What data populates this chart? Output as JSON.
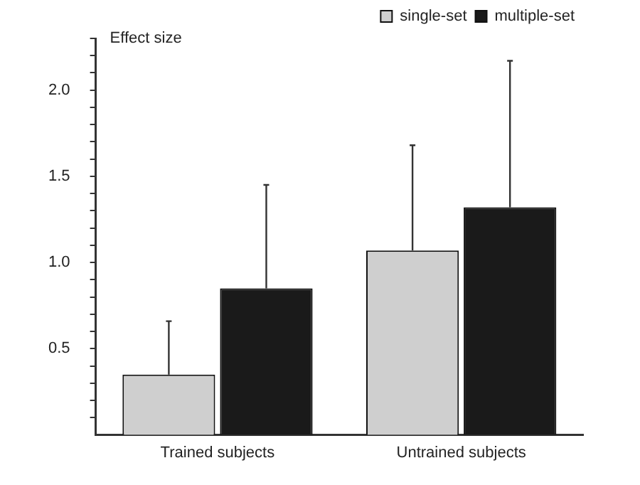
{
  "chart_data": {
    "type": "bar",
    "ylabel": "Effect size",
    "categories": [
      "Trained subjects",
      "Untrained subjects"
    ],
    "series": [
      {
        "name": "single-set",
        "color": "#cfcfcf",
        "values": [
          0.35,
          1.07
        ],
        "errors": [
          [
            0.35,
            0.66
          ],
          [
            1.07,
            1.68
          ]
        ]
      },
      {
        "name": "multiple-set",
        "color": "#1a1a1a",
        "values": [
          0.85,
          1.32
        ],
        "errors": [
          [
            0.85,
            1.45
          ],
          [
            1.32,
            2.17
          ]
        ]
      }
    ],
    "ylim": [
      0,
      2.3
    ],
    "yticks": [
      {
        "value": 0.1,
        "label": null
      },
      {
        "value": 0.2,
        "label": null
      },
      {
        "value": 0.3,
        "label": null
      },
      {
        "value": 0.4,
        "label": null
      },
      {
        "value": 0.5,
        "label": "0.5"
      },
      {
        "value": 0.6,
        "label": null
      },
      {
        "value": 0.7,
        "label": null
      },
      {
        "value": 0.8,
        "label": null
      },
      {
        "value": 0.9,
        "label": null
      },
      {
        "value": 1.0,
        "label": "1.0"
      },
      {
        "value": 1.1,
        "label": null
      },
      {
        "value": 1.2,
        "label": null
      },
      {
        "value": 1.3,
        "label": null
      },
      {
        "value": 1.4,
        "label": null
      },
      {
        "value": 1.5,
        "label": "1.5"
      },
      {
        "value": 1.6,
        "label": null
      },
      {
        "value": 1.7,
        "label": null
      },
      {
        "value": 1.8,
        "label": null
      },
      {
        "value": 1.9,
        "label": null
      },
      {
        "value": 2.0,
        "label": "2.0"
      },
      {
        "value": 2.1,
        "label": null
      },
      {
        "value": 2.2,
        "label": null
      },
      {
        "value": 2.3,
        "label": null
      }
    ],
    "grid": false,
    "legend": "top right"
  }
}
